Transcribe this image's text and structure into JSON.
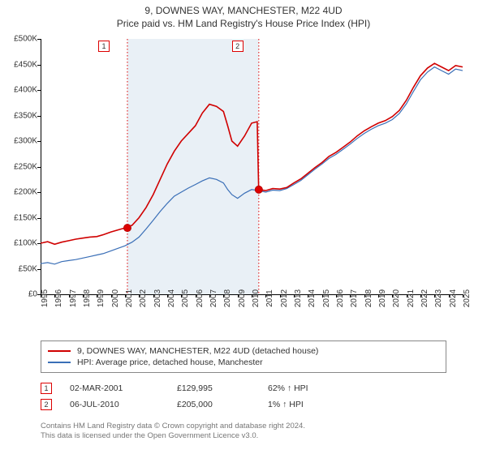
{
  "title_line1": "9, DOWNES WAY, MANCHESTER, M22 4UD",
  "title_line2": "Price paid vs. HM Land Registry's House Price Index (HPI)",
  "colors": {
    "series_property": "#d00000",
    "series_hpi": "#3a6fb7",
    "shade": "#dbe6f0",
    "marker_border": "#d00000",
    "text": "#333333",
    "footer": "#777777",
    "axis": "#000000"
  },
  "y_axis": {
    "min": 0,
    "max": 500000,
    "step": 50000,
    "labels": [
      "£0",
      "£50K",
      "£100K",
      "£150K",
      "£200K",
      "£250K",
      "£300K",
      "£350K",
      "£400K",
      "£450K",
      "£500K"
    ]
  },
  "x_axis": {
    "min": 1995,
    "max": 2025,
    "ticks": [
      1995,
      1996,
      1997,
      1998,
      1999,
      2000,
      2001,
      2002,
      2003,
      2004,
      2005,
      2006,
      2007,
      2008,
      2009,
      2010,
      2011,
      2012,
      2013,
      2014,
      2015,
      2016,
      2017,
      2018,
      2019,
      2020,
      2021,
      2022,
      2023,
      2024,
      2025
    ]
  },
  "shade_range": {
    "from": 2001.17,
    "to": 2010.51
  },
  "series": {
    "property": {
      "label": "9, DOWNES WAY, MANCHESTER, M22 4UD (detached house)",
      "line_width": 1.6,
      "points": [
        [
          1995,
          100000
        ],
        [
          1995.5,
          103000
        ],
        [
          1996,
          98000
        ],
        [
          1996.5,
          102000
        ],
        [
          1997,
          105000
        ],
        [
          1997.5,
          108000
        ],
        [
          1998,
          110000
        ],
        [
          1998.5,
          112000
        ],
        [
          1999,
          113000
        ],
        [
          1999.5,
          117000
        ],
        [
          2000,
          122000
        ],
        [
          2000.5,
          126000
        ],
        [
          2001,
          130000
        ],
        [
          2001.5,
          135000
        ],
        [
          2002,
          150000
        ],
        [
          2002.5,
          170000
        ],
        [
          2003,
          195000
        ],
        [
          2003.5,
          225000
        ],
        [
          2004,
          255000
        ],
        [
          2004.5,
          280000
        ],
        [
          2005,
          300000
        ],
        [
          2005.5,
          315000
        ],
        [
          2006,
          330000
        ],
        [
          2006.5,
          355000
        ],
        [
          2007,
          372000
        ],
        [
          2007.5,
          368000
        ],
        [
          2008,
          358000
        ],
        [
          2008.3,
          330000
        ],
        [
          2008.6,
          300000
        ],
        [
          2009,
          290000
        ],
        [
          2009.5,
          310000
        ],
        [
          2010,
          335000
        ],
        [
          2010.4,
          338000
        ],
        [
          2010.5,
          205000
        ],
        [
          2011,
          203000
        ],
        [
          2011.5,
          207000
        ],
        [
          2012,
          206000
        ],
        [
          2012.5,
          209000
        ],
        [
          2013,
          218000
        ],
        [
          2013.5,
          226000
        ],
        [
          2014,
          237000
        ],
        [
          2014.5,
          248000
        ],
        [
          2015,
          258000
        ],
        [
          2015.5,
          270000
        ],
        [
          2016,
          278000
        ],
        [
          2016.5,
          288000
        ],
        [
          2017,
          298000
        ],
        [
          2017.5,
          310000
        ],
        [
          2018,
          320000
        ],
        [
          2018.5,
          328000
        ],
        [
          2019,
          335000
        ],
        [
          2019.5,
          340000
        ],
        [
          2020,
          348000
        ],
        [
          2020.5,
          360000
        ],
        [
          2021,
          380000
        ],
        [
          2021.5,
          405000
        ],
        [
          2022,
          428000
        ],
        [
          2022.5,
          443000
        ],
        [
          2023,
          452000
        ],
        [
          2023.5,
          445000
        ],
        [
          2024,
          438000
        ],
        [
          2024.5,
          448000
        ],
        [
          2025,
          445000
        ]
      ]
    },
    "hpi": {
      "label": "HPI: Average price, detached house, Manchester",
      "line_width": 1.2,
      "points": [
        [
          1995,
          60000
        ],
        [
          1995.5,
          62000
        ],
        [
          1996,
          59000
        ],
        [
          1996.5,
          64000
        ],
        [
          1997,
          66000
        ],
        [
          1997.5,
          68000
        ],
        [
          1998,
          71000
        ],
        [
          1998.5,
          74000
        ],
        [
          1999,
          77000
        ],
        [
          1999.5,
          80000
        ],
        [
          2000,
          85000
        ],
        [
          2000.5,
          90000
        ],
        [
          2001,
          95000
        ],
        [
          2001.5,
          102000
        ],
        [
          2002,
          112000
        ],
        [
          2002.5,
          128000
        ],
        [
          2003,
          145000
        ],
        [
          2003.5,
          162000
        ],
        [
          2004,
          178000
        ],
        [
          2004.5,
          192000
        ],
        [
          2005,
          200000
        ],
        [
          2005.5,
          208000
        ],
        [
          2006,
          215000
        ],
        [
          2006.5,
          222000
        ],
        [
          2007,
          228000
        ],
        [
          2007.5,
          225000
        ],
        [
          2008,
          218000
        ],
        [
          2008.3,
          205000
        ],
        [
          2008.6,
          195000
        ],
        [
          2009,
          188000
        ],
        [
          2009.5,
          198000
        ],
        [
          2010,
          205000
        ],
        [
          2010.5,
          203000
        ],
        [
          2011,
          200000
        ],
        [
          2011.5,
          204000
        ],
        [
          2012,
          203000
        ],
        [
          2012.5,
          207000
        ],
        [
          2013,
          215000
        ],
        [
          2013.5,
          223000
        ],
        [
          2014,
          234000
        ],
        [
          2014.5,
          245000
        ],
        [
          2015,
          255000
        ],
        [
          2015.5,
          266000
        ],
        [
          2016,
          274000
        ],
        [
          2016.5,
          284000
        ],
        [
          2017,
          294000
        ],
        [
          2017.5,
          305000
        ],
        [
          2018,
          315000
        ],
        [
          2018.5,
          323000
        ],
        [
          2019,
          330000
        ],
        [
          2019.5,
          335000
        ],
        [
          2020,
          342000
        ],
        [
          2020.5,
          354000
        ],
        [
          2021,
          373000
        ],
        [
          2021.5,
          397000
        ],
        [
          2022,
          420000
        ],
        [
          2022.5,
          435000
        ],
        [
          2023,
          445000
        ],
        [
          2023.5,
          438000
        ],
        [
          2024,
          431000
        ],
        [
          2024.5,
          441000
        ],
        [
          2025,
          438000
        ]
      ]
    }
  },
  "markers": [
    {
      "id": "1",
      "year": 2001.17,
      "label_x_year": 1999.5
    },
    {
      "id": "2",
      "year": 2010.51,
      "label_x_year": 2009.0
    }
  ],
  "sale_dots": [
    {
      "year": 2001.17,
      "value": 129995
    },
    {
      "year": 2010.51,
      "value": 205000
    }
  ],
  "legend": [
    {
      "color_key": "series_property",
      "label": "9, DOWNES WAY, MANCHESTER, M22 4UD (detached house)"
    },
    {
      "color_key": "series_hpi",
      "label": "HPI: Average price, detached house, Manchester"
    }
  ],
  "sale_rows": [
    {
      "marker": "1",
      "date": "02-MAR-2001",
      "price": "£129,995",
      "pct": "62% ↑ HPI"
    },
    {
      "marker": "2",
      "date": "06-JUL-2010",
      "price": "£205,000",
      "pct": "1% ↑ HPI"
    }
  ],
  "footer_line1": "Contains HM Land Registry data © Crown copyright and database right 2024.",
  "footer_line2": "This data is licensed under the Open Government Licence v3.0."
}
